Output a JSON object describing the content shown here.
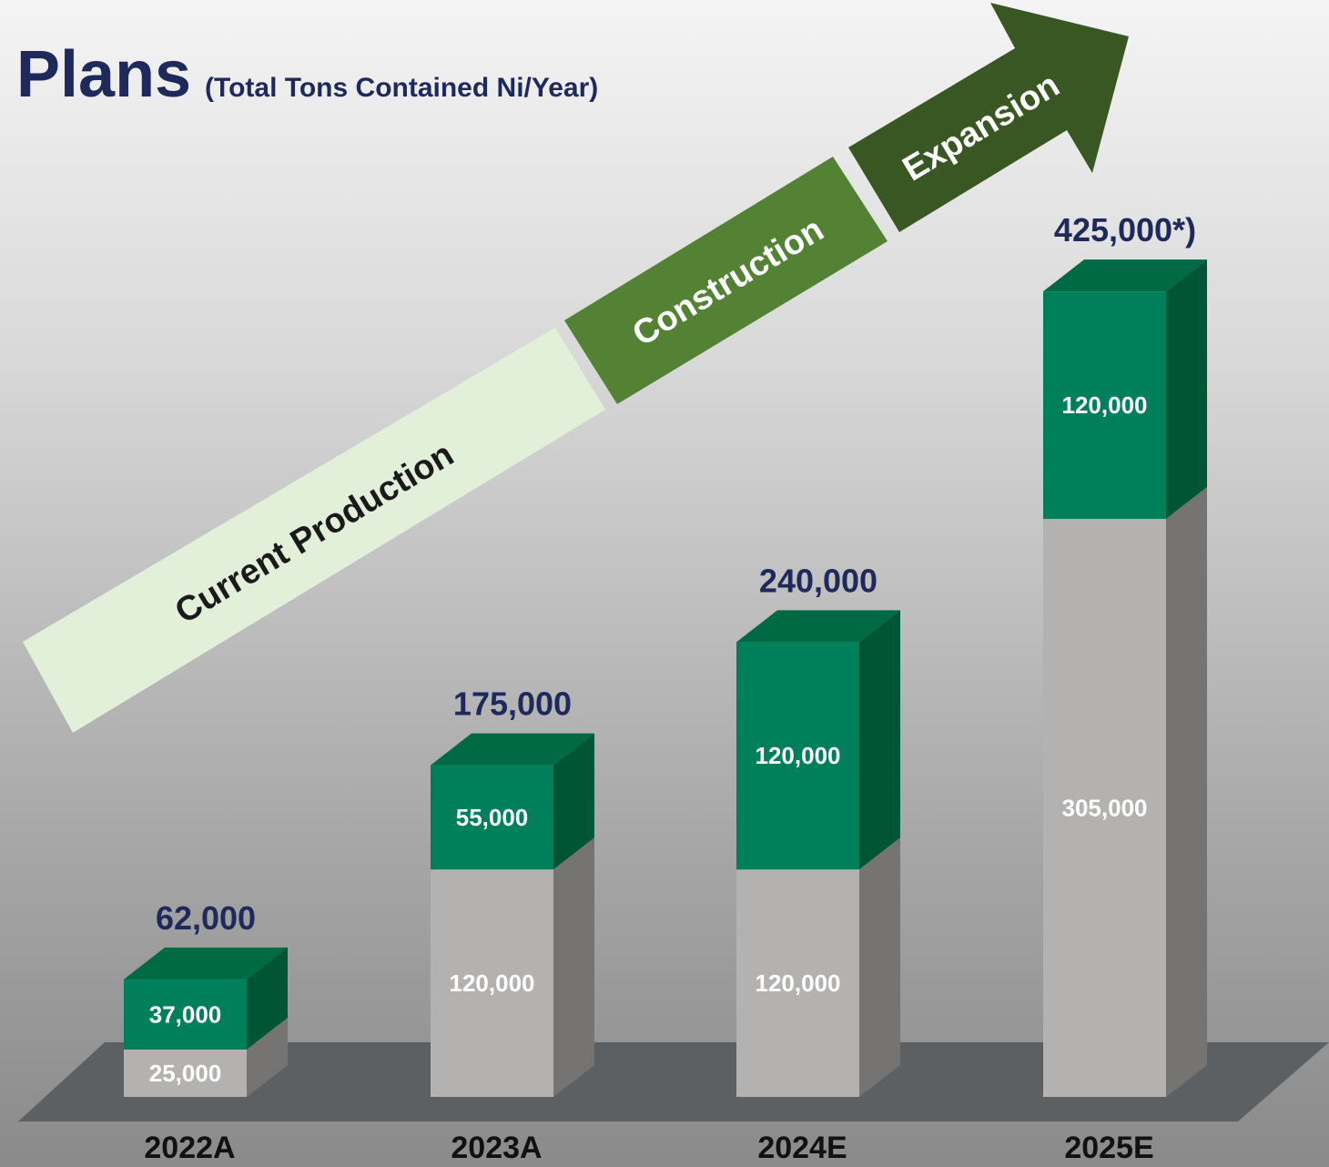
{
  "chart_data": {
    "type": "stacked-bar-3d",
    "title": "Plans",
    "subtitle": "(Total Tons Contained Ni/Year)",
    "annotations": [
      "Current Production",
      "Construction",
      "Expansion"
    ],
    "categories": [
      "2022A",
      "2023A",
      "2024E",
      "2025E"
    ],
    "series": [
      {
        "color": "#b3b2b1",
        "side_color": "#757473",
        "values": [
          25000,
          120000,
          120000,
          305000
        ],
        "value_labels": [
          "25,000",
          "120,000",
          "120,000",
          "305,000"
        ]
      },
      {
        "color": "#00805a",
        "side_color": "#005536",
        "values": [
          37000,
          55000,
          120000,
          120000
        ],
        "value_labels": [
          "37,000",
          "55,000",
          "120,000",
          "120,000"
        ]
      }
    ],
    "totals": {
      "values": [
        62000,
        175000,
        240000,
        425000
      ],
      "value_labels": [
        "62,000",
        "175,000",
        "240,000",
        "425,000*)"
      ]
    }
  }
}
